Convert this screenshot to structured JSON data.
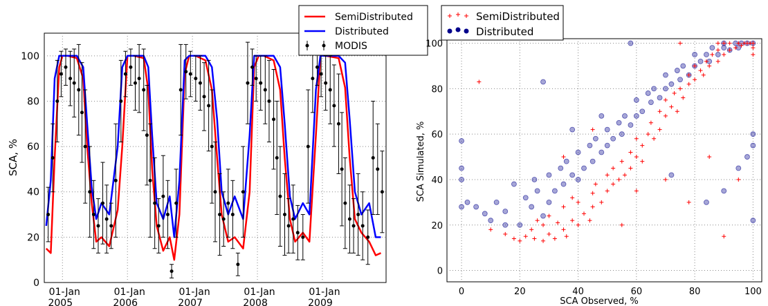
{
  "chart_data": [
    {
      "type": "line",
      "ylabel": "SCA, %",
      "xlabel": "",
      "ylim": [
        0,
        110
      ],
      "yticks": [
        0,
        20,
        40,
        60,
        80,
        100
      ],
      "xticks": [
        {
          "label": "01-Jan",
          "year": "2005"
        },
        {
          "label": "01-Jan",
          "year": "2006"
        },
        {
          "label": "01-Jan",
          "year": "2007"
        },
        {
          "label": "01-Jan",
          "year": "2008"
        },
        {
          "label": "01-Jan",
          "year": "2009"
        }
      ],
      "grid": true,
      "legend_position": "top-right",
      "series": [
        {
          "name": "SemiDistributed",
          "color": "#ff0000",
          "x": [
            2004.75,
            2004.82,
            2004.88,
            2004.95,
            2005.0,
            2005.08,
            2005.22,
            2005.32,
            2005.38,
            2005.45,
            2005.52,
            2005.6,
            2005.72,
            2005.85,
            2005.92,
            2006.0,
            2006.1,
            2006.25,
            2006.32,
            2006.38,
            2006.45,
            2006.55,
            2006.65,
            2006.72,
            2006.8,
            2006.88,
            2006.95,
            2007.05,
            2007.2,
            2007.3,
            2007.38,
            2007.45,
            2007.55,
            2007.65,
            2007.78,
            2007.88,
            2007.95,
            2008.02,
            2008.1,
            2008.25,
            2008.35,
            2008.42,
            2008.5,
            2008.58,
            2008.7,
            2008.8,
            2008.9,
            2008.97,
            2009.05,
            2009.25,
            2009.35,
            2009.42,
            2009.5,
            2009.6,
            2009.72,
            2009.82,
            2009.9
          ],
          "values": [
            15,
            13,
            55,
            95,
            100,
            100,
            99,
            90,
            60,
            35,
            18,
            20,
            16,
            32,
            60,
            100,
            100,
            99,
            85,
            50,
            25,
            14,
            20,
            10,
            30,
            92,
            100,
            100,
            98,
            85,
            55,
            30,
            18,
            20,
            15,
            40,
            95,
            100,
            100,
            98,
            85,
            55,
            28,
            18,
            22,
            18,
            65,
            100,
            100,
            99,
            86,
            55,
            28,
            22,
            18,
            12,
            13
          ]
        },
        {
          "name": "Distributed",
          "color": "#0000ff",
          "x": [
            2004.75,
            2004.82,
            2004.88,
            2004.95,
            2005.0,
            2005.08,
            2005.22,
            2005.32,
            2005.38,
            2005.45,
            2005.52,
            2005.6,
            2005.72,
            2005.85,
            2005.92,
            2006.0,
            2006.1,
            2006.25,
            2006.32,
            2006.38,
            2006.45,
            2006.55,
            2006.65,
            2006.72,
            2006.8,
            2006.88,
            2006.95,
            2007.05,
            2007.2,
            2007.3,
            2007.38,
            2007.45,
            2007.55,
            2007.65,
            2007.78,
            2007.88,
            2007.95,
            2008.02,
            2008.1,
            2008.25,
            2008.35,
            2008.42,
            2008.5,
            2008.58,
            2008.7,
            2008.8,
            2008.9,
            2008.97,
            2009.05,
            2009.25,
            2009.35,
            2009.42,
            2009.5,
            2009.6,
            2009.72,
            2009.82,
            2009.9
          ],
          "values": [
            25,
            45,
            90,
            100,
            100,
            100,
            100,
            95,
            70,
            42,
            28,
            35,
            30,
            60,
            95,
            100,
            100,
            100,
            95,
            65,
            35,
            28,
            38,
            20,
            45,
            98,
            100,
            100,
            100,
            95,
            72,
            40,
            30,
            38,
            28,
            65,
            100,
            100,
            100,
            100,
            95,
            70,
            38,
            28,
            35,
            30,
            85,
            100,
            100,
            100,
            97,
            72,
            40,
            30,
            35,
            20,
            20
          ]
        },
        {
          "name": "MODIS",
          "color": "#000000",
          "type": "errorbar",
          "x": [
            2004.78,
            2004.85,
            2004.92,
            2004.98,
            2005.05,
            2005.12,
            2005.18,
            2005.25,
            2005.3,
            2005.35,
            2005.42,
            2005.48,
            2005.55,
            2005.62,
            2005.68,
            2005.75,
            2005.82,
            2005.9,
            2005.97,
            2006.05,
            2006.12,
            2006.18,
            2006.25,
            2006.3,
            2006.35,
            2006.42,
            2006.48,
            2006.55,
            2006.62,
            2006.68,
            2006.75,
            2006.82,
            2006.9,
            2006.97,
            2007.05,
            2007.12,
            2007.18,
            2007.25,
            2007.3,
            2007.35,
            2007.42,
            2007.48,
            2007.55,
            2007.62,
            2007.7,
            2007.78,
            2007.85,
            2007.92,
            2007.98,
            2008.05,
            2008.12,
            2008.18,
            2008.25,
            2008.3,
            2008.35,
            2008.42,
            2008.48,
            2008.55,
            2008.62,
            2008.7,
            2008.78,
            2008.85,
            2008.92,
            2008.98,
            2009.05,
            2009.12,
            2009.18,
            2009.25,
            2009.3,
            2009.35,
            2009.42,
            2009.48,
            2009.55,
            2009.62,
            2009.7,
            2009.78,
            2009.85,
            2009.92
          ],
          "values": [
            30,
            55,
            80,
            92,
            95,
            90,
            88,
            85,
            75,
            60,
            40,
            30,
            25,
            35,
            28,
            25,
            45,
            80,
            92,
            95,
            88,
            90,
            85,
            65,
            45,
            35,
            25,
            38,
            30,
            5,
            35,
            85,
            93,
            92,
            90,
            88,
            82,
            78,
            60,
            40,
            30,
            28,
            35,
            30,
            8,
            40,
            88,
            95,
            90,
            88,
            85,
            80,
            72,
            55,
            38,
            30,
            25,
            28,
            22,
            20,
            60,
            90,
            95,
            92,
            88,
            85,
            78,
            70,
            50,
            35,
            28,
            25,
            30,
            25,
            20,
            55,
            50,
            40
          ],
          "errors": [
            12,
            15,
            18,
            10,
            8,
            12,
            15,
            20,
            22,
            25,
            20,
            15,
            12,
            18,
            15,
            10,
            25,
            18,
            10,
            8,
            12,
            15,
            18,
            22,
            25,
            20,
            12,
            18,
            15,
            3,
            15,
            20,
            12,
            10,
            10,
            12,
            15,
            20,
            25,
            22,
            18,
            12,
            15,
            15,
            5,
            20,
            18,
            8,
            10,
            12,
            15,
            18,
            22,
            25,
            22,
            18,
            12,
            15,
            12,
            10,
            25,
            15,
            8,
            10,
            12,
            15,
            18,
            22,
            25,
            20,
            15,
            12,
            18,
            15,
            12,
            25,
            20,
            18
          ]
        }
      ]
    },
    {
      "type": "scatter",
      "xlabel": "SCA Observed, %",
      "ylabel": "SCA Simulated, %",
      "xlim": [
        -5,
        103
      ],
      "ylim": [
        -5,
        102
      ],
      "xticks": [
        0,
        20,
        40,
        60,
        80,
        100
      ],
      "yticks": [
        0,
        20,
        40,
        60,
        80,
        100
      ],
      "grid": true,
      "legend_position": "top-left",
      "series": [
        {
          "name": "SemiDistributed",
          "color": "#ff0000",
          "marker": "+",
          "x": [
            6,
            10,
            15,
            18,
            20,
            22,
            24,
            25,
            26,
            28,
            28,
            30,
            30,
            32,
            33,
            35,
            35,
            36,
            38,
            38,
            40,
            40,
            42,
            44,
            45,
            45,
            46,
            48,
            50,
            50,
            52,
            52,
            54,
            55,
            56,
            58,
            58,
            60,
            60,
            62,
            62,
            64,
            65,
            66,
            68,
            68,
            70,
            70,
            72,
            73,
            74,
            75,
            76,
            78,
            78,
            80,
            80,
            82,
            83,
            84,
            85,
            86,
            88,
            88,
            90,
            90,
            92,
            92,
            94,
            95,
            96,
            97,
            98,
            99,
            100,
            100,
            100,
            85,
            55,
            35,
            45,
            60,
            70,
            78,
            90,
            95,
            88,
            75
          ],
          "values": [
            83,
            18,
            16,
            14,
            13,
            15,
            18,
            14,
            22,
            13,
            20,
            16,
            24,
            14,
            21,
            18,
            28,
            15,
            22,
            32,
            20,
            30,
            25,
            22,
            34,
            28,
            38,
            30,
            35,
            42,
            38,
            45,
            40,
            48,
            42,
            45,
            52,
            50,
            58,
            55,
            48,
            60,
            65,
            58,
            62,
            70,
            68,
            75,
            72,
            78,
            70,
            80,
            76,
            82,
            86,
            84,
            90,
            88,
            86,
            92,
            90,
            95,
            92,
            97,
            95,
            100,
            97,
            100,
            98,
            100,
            99,
            100,
            100,
            100,
            100,
            98,
            95,
            50,
            20,
            50,
            62,
            35,
            40,
            30,
            15,
            40,
            100,
            100
          ]
        },
        {
          "name": "Distributed",
          "color": "#00008b",
          "marker": "o",
          "x": [
            0,
            0,
            0,
            0,
            2,
            5,
            8,
            10,
            12,
            15,
            18,
            20,
            22,
            24,
            25,
            26,
            28,
            30,
            30,
            32,
            34,
            35,
            36,
            38,
            40,
            40,
            42,
            44,
            45,
            46,
            48,
            50,
            50,
            52,
            54,
            55,
            56,
            58,
            60,
            60,
            62,
            64,
            65,
            66,
            68,
            70,
            70,
            72,
            74,
            75,
            76,
            78,
            80,
            80,
            82,
            84,
            85,
            86,
            88,
            90,
            90,
            92,
            94,
            95,
            96,
            98,
            100,
            100,
            100,
            100,
            28,
            48,
            58,
            72,
            84,
            90,
            95,
            98,
            15,
            38
          ],
          "values": [
            57,
            45,
            40,
            28,
            30,
            28,
            25,
            22,
            30,
            26,
            38,
            20,
            32,
            28,
            40,
            35,
            24,
            30,
            42,
            35,
            45,
            38,
            48,
            42,
            40,
            52,
            45,
            55,
            48,
            58,
            52,
            55,
            62,
            58,
            65,
            60,
            68,
            64,
            68,
            75,
            70,
            78,
            74,
            80,
            76,
            80,
            86,
            82,
            88,
            84,
            90,
            86,
            90,
            95,
            92,
            95,
            92,
            98,
            95,
            98,
            100,
            97,
            100,
            98,
            100,
            100,
            100,
            60,
            55,
            22,
            83,
            68,
            100,
            42,
            30,
            35,
            45,
            50,
            20,
            62
          ]
        }
      ]
    }
  ]
}
